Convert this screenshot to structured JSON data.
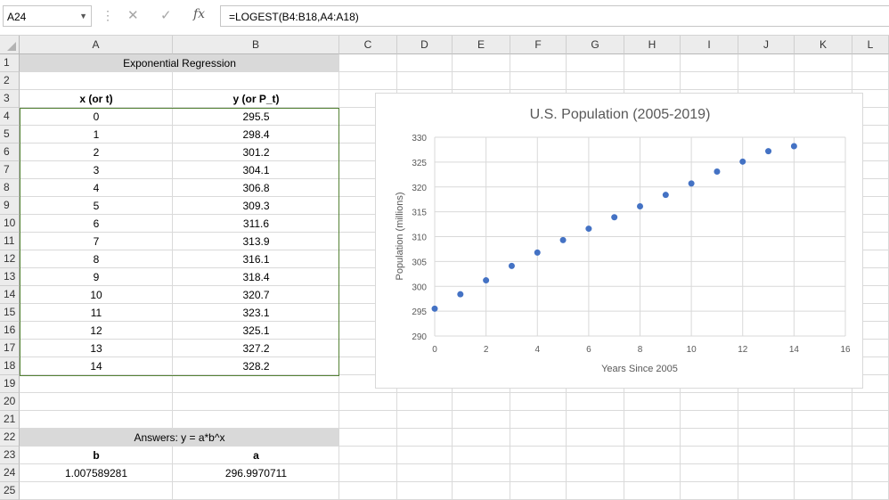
{
  "formula_bar": {
    "name_box": "A24",
    "formula": "=LOGEST(B4:B18,A4:A18)",
    "cancel_symbol": "✕",
    "enter_symbol": "✓",
    "fx_label": "fx",
    "dots": "⋮"
  },
  "columns": [
    "A",
    "B",
    "C",
    "D",
    "E",
    "F",
    "G",
    "H",
    "I",
    "J",
    "K",
    "L"
  ],
  "rows": [
    "1",
    "2",
    "3",
    "4",
    "5",
    "6",
    "7",
    "8",
    "9",
    "10",
    "11",
    "12",
    "13",
    "14",
    "15",
    "16",
    "17",
    "18",
    "19",
    "20",
    "21",
    "22",
    "23",
    "24",
    "25"
  ],
  "sheet": {
    "title": "Exponential Regression",
    "header_x": "x (or t)",
    "header_y": "y (or P_t)",
    "data": [
      {
        "x": "0",
        "y": "295.5"
      },
      {
        "x": "1",
        "y": "298.4"
      },
      {
        "x": "2",
        "y": "301.2"
      },
      {
        "x": "3",
        "y": "304.1"
      },
      {
        "x": "4",
        "y": "306.8"
      },
      {
        "x": "5",
        "y": "309.3"
      },
      {
        "x": "6",
        "y": "311.6"
      },
      {
        "x": "7",
        "y": "313.9"
      },
      {
        "x": "8",
        "y": "316.1"
      },
      {
        "x": "9",
        "y": "318.4"
      },
      {
        "x": "10",
        "y": "320.7"
      },
      {
        "x": "11",
        "y": "323.1"
      },
      {
        "x": "12",
        "y": "325.1"
      },
      {
        "x": "13",
        "y": "327.2"
      },
      {
        "x": "14",
        "y": "328.2"
      }
    ],
    "answers_title": "Answers: y = a*b^x",
    "answer_b_label": "b",
    "answer_a_label": "a",
    "answer_b_value": "1.007589281",
    "answer_a_value": "296.9970711"
  },
  "chart_data": {
    "type": "scatter",
    "title": "U.S. Population (2005-2019)",
    "xlabel": "Years Since 2005",
    "ylabel": "Population (millions)",
    "xlim": [
      0,
      16
    ],
    "ylim": [
      290,
      330
    ],
    "xticks": [
      0,
      2,
      4,
      6,
      8,
      10,
      12,
      14,
      16
    ],
    "yticks": [
      290,
      295,
      300,
      305,
      310,
      315,
      320,
      325,
      330
    ],
    "grid": true,
    "marker_color": "#4472c4",
    "series": [
      {
        "x": [
          0,
          1,
          2,
          3,
          4,
          5,
          6,
          7,
          8,
          9,
          10,
          11,
          12,
          13,
          14
        ],
        "y": [
          295.5,
          298.4,
          301.2,
          304.1,
          306.8,
          309.3,
          311.6,
          313.9,
          316.1,
          318.4,
          320.7,
          323.1,
          325.1,
          327.2,
          328.2
        ]
      }
    ]
  }
}
